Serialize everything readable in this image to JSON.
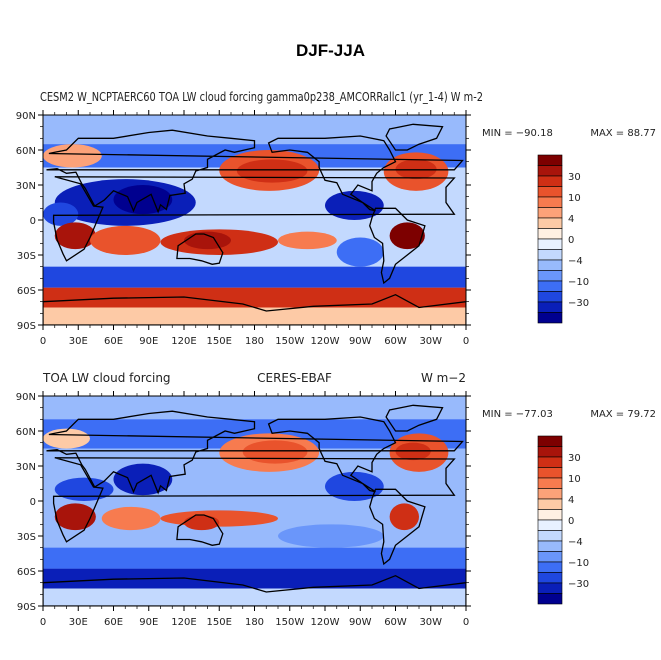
{
  "title": "DJF-JJA",
  "color_levels": [
    "#00008f",
    "#0a1fb8",
    "#1f47e0",
    "#3d6ef5",
    "#6a96fa",
    "#98bafc",
    "#c3d9fe",
    "#e8f1ff",
    "#fff0e3",
    "#fdcaa6",
    "#fca279",
    "#f77b4f",
    "#e9532c",
    "#cf2f15",
    "#a8140b",
    "#7d0000"
  ],
  "panels": [
    {
      "overlay_text": "CESM2 W_NCPTAERC60 TOA LW cloud forcing gamma0p238_AMCORRallc1 (yr_1-4) W m-2",
      "left_text": "",
      "center_text": "",
      "right_text": "",
      "min_text": "MIN = −90.18",
      "max_text": "MAX =  88.77"
    },
    {
      "overlay_text": "",
      "left_text": "TOA LW cloud forcing",
      "center_text": "CERES-EBAF",
      "right_text": "W m−2",
      "min_text": "MIN = −77.03",
      "max_text": "MAX =  79.72"
    }
  ],
  "chart_data": [
    {
      "type": "heatmap",
      "title": "DJF-JJA",
      "left_label": "CESM2 W_NCPTAERC60 TOA LW cloud forcing gamma0p238_AMCORRallc1 (yr_1-4)",
      "right_label": "W m-2",
      "x_ticks": [
        "0",
        "30E",
        "60E",
        "90E",
        "120E",
        "150E",
        "180",
        "150W",
        "120W",
        "90W",
        "60W",
        "30W",
        "0"
      ],
      "y_ticks": [
        "90N",
        "60N",
        "30N",
        "0",
        "30S",
        "60S",
        "90S"
      ],
      "xlim": [
        0,
        360
      ],
      "ylim": [
        -90,
        90
      ],
      "min": -90.18,
      "max": 88.77,
      "colorbar_labels": [
        "30",
        "10",
        "4",
        "0",
        "−4",
        "−10",
        "−30"
      ],
      "regions": [
        {
          "lon": [
            0,
            360
          ],
          "lat": [
            -90,
            90
          ],
          "level": 6
        },
        {
          "lon": [
            0,
            360
          ],
          "lat": [
            65,
            90
          ],
          "level": 5
        },
        {
          "lon": [
            0,
            360
          ],
          "lat": [
            45,
            65
          ],
          "level": 3
        },
        {
          "lon": [
            150,
            235
          ],
          "lat": [
            25,
            60
          ],
          "level": 12
        },
        {
          "lon": [
            165,
            225
          ],
          "lat": [
            32,
            52
          ],
          "level": 13
        },
        {
          "lon": [
            290,
            345
          ],
          "lat": [
            25,
            58
          ],
          "level": 12
        },
        {
          "lon": [
            300,
            335
          ],
          "lat": [
            35,
            52
          ],
          "level": 13
        },
        {
          "lon": [
            0,
            50
          ],
          "lat": [
            45,
            65
          ],
          "level": 10
        },
        {
          "lon": [
            10,
            130
          ],
          "lat": [
            -5,
            35
          ],
          "level": 1
        },
        {
          "lon": [
            60,
            110
          ],
          "lat": [
            5,
            30
          ],
          "level": 0
        },
        {
          "lon": [
            240,
            290
          ],
          "lat": [
            0,
            25
          ],
          "level": 1
        },
        {
          "lon": [
            0,
            30
          ],
          "lat": [
            -5,
            15
          ],
          "level": 2
        },
        {
          "lon": [
            10,
            45
          ],
          "lat": [
            -25,
            -2
          ],
          "level": 14
        },
        {
          "lon": [
            40,
            100
          ],
          "lat": [
            -30,
            -5
          ],
          "level": 12
        },
        {
          "lon": [
            100,
            200
          ],
          "lat": [
            -30,
            -8
          ],
          "level": 13
        },
        {
          "lon": [
            120,
            160
          ],
          "lat": [
            -25,
            -10
          ],
          "level": 14
        },
        {
          "lon": [
            200,
            250
          ],
          "lat": [
            -25,
            -10
          ],
          "level": 11
        },
        {
          "lon": [
            295,
            325
          ],
          "lat": [
            -25,
            -2
          ],
          "level": 15
        },
        {
          "lon": [
            250,
            290
          ],
          "lat": [
            -40,
            -15
          ],
          "level": 3
        },
        {
          "lon": [
            0,
            360
          ],
          "lat": [
            -58,
            -40
          ],
          "level": 2
        },
        {
          "lon": [
            0,
            360
          ],
          "lat": [
            -75,
            -58
          ],
          "level": 13
        },
        {
          "lon": [
            0,
            360
          ],
          "lat": [
            -90,
            -75
          ],
          "level": 9
        }
      ]
    },
    {
      "type": "heatmap",
      "title": "DJF-JJA",
      "left_label": "TOA LW cloud forcing",
      "center_label": "CERES-EBAF",
      "right_label": "W m-2",
      "x_ticks": [
        "0",
        "30E",
        "60E",
        "90E",
        "120E",
        "150E",
        "180",
        "150W",
        "120W",
        "90W",
        "60W",
        "30W",
        "0"
      ],
      "y_ticks": [
        "90N",
        "60N",
        "30N",
        "0",
        "30S",
        "60S",
        "90S"
      ],
      "xlim": [
        0,
        360
      ],
      "ylim": [
        -90,
        90
      ],
      "min": -77.03,
      "max": 79.72,
      "colorbar_labels": [
        "30",
        "10",
        "4",
        "0",
        "−4",
        "−10",
        "−30"
      ],
      "regions": [
        {
          "lon": [
            0,
            360
          ],
          "lat": [
            -90,
            90
          ],
          "level": 5
        },
        {
          "lon": [
            0,
            360
          ],
          "lat": [
            70,
            90
          ],
          "level": 5
        },
        {
          "lon": [
            0,
            360
          ],
          "lat": [
            45,
            70
          ],
          "level": 3
        },
        {
          "lon": [
            150,
            235
          ],
          "lat": [
            25,
            58
          ],
          "level": 11
        },
        {
          "lon": [
            170,
            225
          ],
          "lat": [
            32,
            52
          ],
          "level": 12
        },
        {
          "lon": [
            295,
            345
          ],
          "lat": [
            25,
            58
          ],
          "level": 12
        },
        {
          "lon": [
            300,
            330
          ],
          "lat": [
            35,
            50
          ],
          "level": 13
        },
        {
          "lon": [
            0,
            40
          ],
          "lat": [
            45,
            62
          ],
          "level": 9
        },
        {
          "lon": [
            60,
            110
          ],
          "lat": [
            5,
            32
          ],
          "level": 1
        },
        {
          "lon": [
            10,
            60
          ],
          "lat": [
            0,
            20
          ],
          "level": 2
        },
        {
          "lon": [
            240,
            290
          ],
          "lat": [
            0,
            25
          ],
          "level": 2
        },
        {
          "lon": [
            10,
            45
          ],
          "lat": [
            -25,
            -2
          ],
          "level": 14
        },
        {
          "lon": [
            50,
            100
          ],
          "lat": [
            -25,
            -5
          ],
          "level": 11
        },
        {
          "lon": [
            100,
            200
          ],
          "lat": [
            -22,
            -8
          ],
          "level": 12
        },
        {
          "lon": [
            120,
            150
          ],
          "lat": [
            -25,
            -12
          ],
          "level": 13
        },
        {
          "lon": [
            295,
            320
          ],
          "lat": [
            -25,
            -2
          ],
          "level": 13
        },
        {
          "lon": [
            200,
            290
          ],
          "lat": [
            -40,
            -20
          ],
          "level": 4
        },
        {
          "lon": [
            0,
            360
          ],
          "lat": [
            -58,
            -40
          ],
          "level": 3
        },
        {
          "lon": [
            0,
            360
          ],
          "lat": [
            -75,
            -58
          ],
          "level": 1
        },
        {
          "lon": [
            0,
            360
          ],
          "lat": [
            -90,
            -75
          ],
          "level": 6
        }
      ]
    }
  ]
}
